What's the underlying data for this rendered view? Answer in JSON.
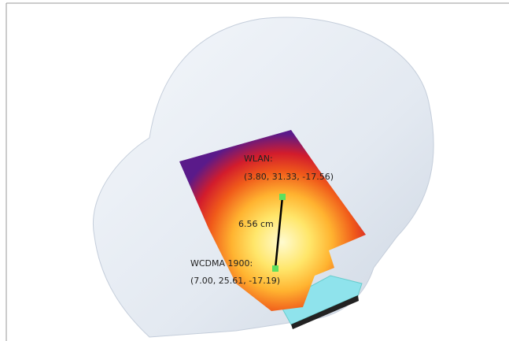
{
  "labels": {
    "wlan_name": "WLAN:",
    "wlan_coords": "(3.80, 31.33, -17.56)",
    "distance": "6.56 cm",
    "wcdma_name": "WCDMA 1900:",
    "wcdma_coords": "(7.00, 25.61, -17.19)"
  }
}
